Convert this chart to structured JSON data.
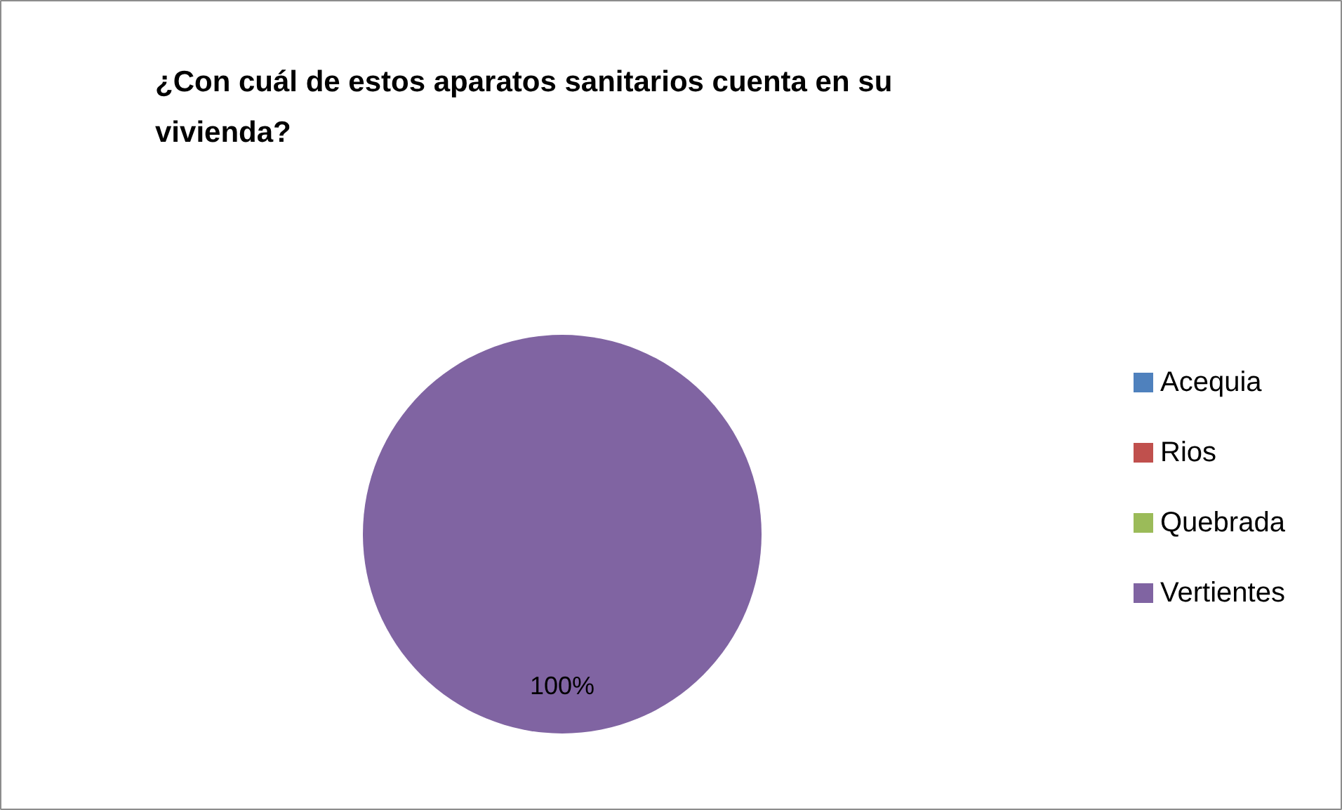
{
  "chart_data": {
    "type": "pie",
    "title": "¿Con cuál de estos aparatos sanitarios cuenta en su vivienda?",
    "categories": [
      "Acequia",
      "Rios",
      "Quebrada",
      "Vertientes"
    ],
    "values": [
      0,
      0,
      0,
      100
    ],
    "colors": [
      "#4f81bd",
      "#c0504d",
      "#9bbb59",
      "#8064a2"
    ],
    "value_labels": [
      null,
      null,
      null,
      "100%"
    ],
    "legend": "right"
  }
}
